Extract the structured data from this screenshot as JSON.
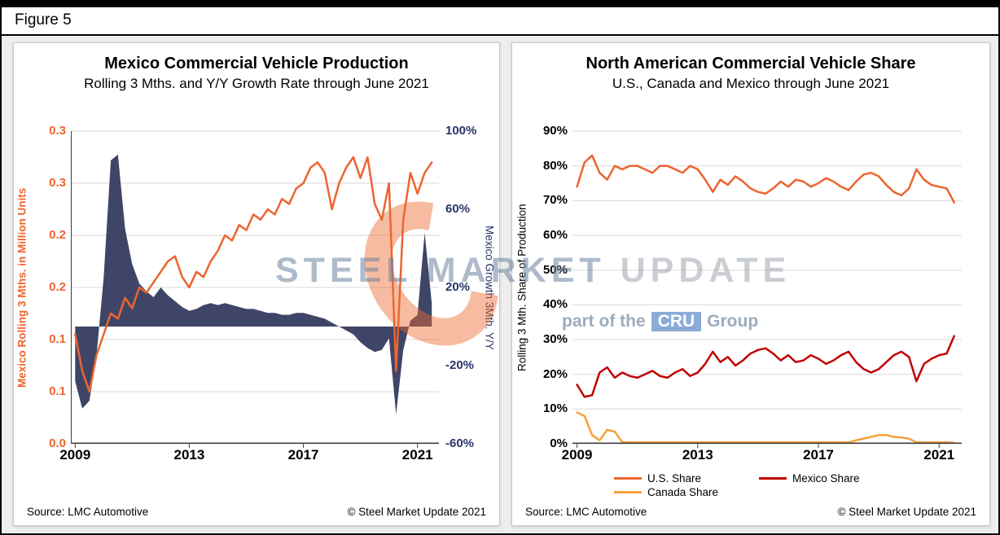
{
  "figure": {
    "label": "Figure 5"
  },
  "colors": {
    "orange": "#ED6430",
    "navy_area": "#3F4566",
    "navy_label": "#283467",
    "mexico_red": "#C00000",
    "canada_orange": "#F6A13B",
    "gridline": "#D9D9D9"
  },
  "left_panel": {
    "title": "Mexico Commercial Vehicle Production",
    "subtitle": "Rolling 3 Mths. and Y/Y Growth Rate through June 2021",
    "source": "Source: LMC Automotive",
    "copyright": "© Steel Market Update 2021"
  },
  "right_panel": {
    "title": "North American Commercial Vehicle Share",
    "subtitle": "U.S., Canada and Mexico through June 2021",
    "source": "Source: LMC Automotive",
    "copyright": "© Steel Market Update 2021",
    "legend": [
      {
        "label": "U.S. Share",
        "color": "#ED6430"
      },
      {
        "label": "Mexico Share",
        "color": "#C00000"
      },
      {
        "label": "Canada Share",
        "color": "#F6A13B"
      }
    ]
  },
  "watermark": {
    "primary": "STEEL MARKET",
    "secondary": "UPDATE",
    "tagline_prefix": "part of the",
    "tagline_box": "CRU",
    "tagline_suffix": "Group"
  },
  "chart_data": [
    {
      "type": "line",
      "title": "Mexico Commercial Vehicle Production",
      "subtitle": "Rolling 3 Mths. and Y/Y Growth Rate through June 2021",
      "x_range": [
        2008.85,
        2021.75
      ],
      "x_ticks": [
        2009,
        2013,
        2017,
        2021
      ],
      "x_tick_labels": [
        "2009",
        "2013",
        "2017",
        "2021"
      ],
      "left_axis": {
        "label": "Mexico Rolling 3 Mths. in Million Units",
        "range": [
          0,
          0.3
        ],
        "tick_values": [
          0,
          0.05,
          0.1,
          0.15,
          0.2,
          0.25,
          0.3
        ],
        "tick_labels": [
          "0.0",
          "0.1",
          "0.1",
          "0.2",
          "0.2",
          "0.3",
          "0.3"
        ],
        "color": "#ED6430"
      },
      "right_axis": {
        "label": "Mexico Growth 3Mth. Y/Y",
        "range": [
          -60,
          100
        ],
        "tick_values": [
          -60,
          -20,
          20,
          60,
          100
        ],
        "tick_labels": [
          "-60%",
          "-20%",
          "20%",
          "60%",
          "100%"
        ],
        "color": "#283467"
      },
      "x": [
        2009,
        2009.25,
        2009.5,
        2009.75,
        2010,
        2010.25,
        2010.5,
        2010.75,
        2011,
        2011.25,
        2011.5,
        2011.75,
        2012,
        2012.25,
        2012.5,
        2012.75,
        2013,
        2013.25,
        2013.5,
        2013.75,
        2014,
        2014.25,
        2014.5,
        2014.75,
        2015,
        2015.25,
        2015.5,
        2015.75,
        2016,
        2016.25,
        2016.5,
        2016.75,
        2017,
        2017.25,
        2017.5,
        2017.75,
        2018,
        2018.25,
        2018.5,
        2018.75,
        2019,
        2019.25,
        2019.5,
        2019.75,
        2020,
        2020.25,
        2020.5,
        2020.75,
        2021,
        2021.25,
        2021.5
      ],
      "series": [
        {
          "name": "Mexico Rolling 3 Mths.",
          "style": "line",
          "axis": "left",
          "color": "#ED6430",
          "values": [
            0.105,
            0.07,
            0.05,
            0.085,
            0.105,
            0.125,
            0.12,
            0.14,
            0.13,
            0.15,
            0.145,
            0.155,
            0.165,
            0.175,
            0.18,
            0.16,
            0.15,
            0.165,
            0.16,
            0.175,
            0.185,
            0.2,
            0.195,
            0.21,
            0.205,
            0.22,
            0.215,
            0.225,
            0.22,
            0.235,
            0.23,
            0.245,
            0.25,
            0.265,
            0.27,
            0.26,
            0.225,
            0.25,
            0.265,
            0.275,
            0.255,
            0.275,
            0.23,
            0.215,
            0.25,
            0.07,
            0.215,
            0.26,
            0.24,
            0.26,
            0.27
          ]
        },
        {
          "name": "Mexico Growth 3Mth. Y/Y",
          "style": "area",
          "axis": "right",
          "color": "#3F4566",
          "values": [
            -28,
            -42,
            -38,
            -15,
            25,
            85,
            88,
            50,
            32,
            22,
            18,
            15,
            20,
            16,
            13,
            10,
            8,
            9,
            11,
            12,
            11,
            12,
            11,
            10,
            9,
            9,
            8,
            7,
            7,
            6,
            6,
            7,
            7,
            6,
            5,
            4,
            2,
            0,
            -2,
            -4,
            -8,
            -11,
            -13,
            -12,
            -6,
            -45,
            -12,
            3,
            6,
            48,
            12
          ]
        }
      ]
    },
    {
      "type": "line",
      "title": "North American Commercial Vehicle Share",
      "subtitle": "U.S., Canada and Mexico through June 2021",
      "x_range": [
        2008.85,
        2021.75
      ],
      "x_ticks": [
        2009,
        2013,
        2017,
        2021
      ],
      "x_tick_labels": [
        "2009",
        "2013",
        "2017",
        "2021"
      ],
      "y_axis": {
        "label": "Rolling 3 Mth. Share of Production",
        "range": [
          0,
          90
        ],
        "tick_values": [
          0,
          10,
          20,
          30,
          40,
          50,
          60,
          70,
          80,
          90
        ],
        "tick_labels": [
          "0%",
          "10%",
          "20%",
          "30%",
          "40%",
          "50%",
          "60%",
          "70%",
          "80%",
          "90%"
        ]
      },
      "x": [
        2009,
        2009.25,
        2009.5,
        2009.75,
        2010,
        2010.25,
        2010.5,
        2010.75,
        2011,
        2011.25,
        2011.5,
        2011.75,
        2012,
        2012.25,
        2012.5,
        2012.75,
        2013,
        2013.25,
        2013.5,
        2013.75,
        2014,
        2014.25,
        2014.5,
        2014.75,
        2015,
        2015.25,
        2015.5,
        2015.75,
        2016,
        2016.25,
        2016.5,
        2016.75,
        2017,
        2017.25,
        2017.5,
        2017.75,
        2018,
        2018.25,
        2018.5,
        2018.75,
        2019,
        2019.25,
        2019.5,
        2019.75,
        2020,
        2020.25,
        2020.5,
        2020.75,
        2021,
        2021.25,
        2021.5
      ],
      "series": [
        {
          "name": "U.S. Share",
          "color": "#ED6430",
          "values": [
            74,
            81,
            83,
            78,
            76,
            80,
            79,
            80,
            80,
            79,
            78,
            80,
            80,
            79,
            78,
            80,
            79,
            76,
            72.5,
            76,
            74.5,
            77,
            75.5,
            73.5,
            72.5,
            72,
            73.5,
            75.5,
            74,
            76,
            75.5,
            74,
            75,
            76.5,
            75.5,
            74,
            73,
            75.5,
            77.5,
            78,
            77,
            74.5,
            72.5,
            71.5,
            73.5,
            79,
            76,
            74.5,
            74,
            73.5,
            69.5
          ]
        },
        {
          "name": "Canada Share",
          "color": "#F6A13B",
          "values": [
            9,
            8,
            2.5,
            1,
            4,
            3.5,
            0.5,
            0.4,
            0.4,
            0.4,
            0.4,
            0.4,
            0.4,
            0.4,
            0.4,
            0.4,
            0.4,
            0.4,
            0.4,
            0.4,
            0.4,
            0.4,
            0.4,
            0.4,
            0.4,
            0.4,
            0.4,
            0.4,
            0.4,
            0.4,
            0.4,
            0.4,
            0.4,
            0.4,
            0.4,
            0.4,
            0.4,
            1,
            1.5,
            2,
            2.5,
            2.5,
            2,
            1.8,
            1.5,
            0.4,
            0.4,
            0.4,
            0.4,
            0.4,
            0.3
          ]
        },
        {
          "name": "Mexico Share",
          "color": "#C00000",
          "values": [
            17,
            13.5,
            14,
            20.5,
            22,
            19,
            20.5,
            19.5,
            19,
            20,
            21,
            19.5,
            19,
            20.5,
            21.5,
            19.5,
            20.5,
            23,
            26.5,
            23.5,
            25,
            22.5,
            24,
            26,
            27,
            27.5,
            26,
            24,
            25.5,
            23.5,
            24,
            25.5,
            24.5,
            23,
            24,
            25.5,
            26.5,
            23.5,
            21.5,
            20.5,
            21.5,
            23.5,
            25.5,
            26.5,
            25,
            18,
            23,
            24.5,
            25.5,
            26,
            31
          ]
        }
      ]
    }
  ]
}
